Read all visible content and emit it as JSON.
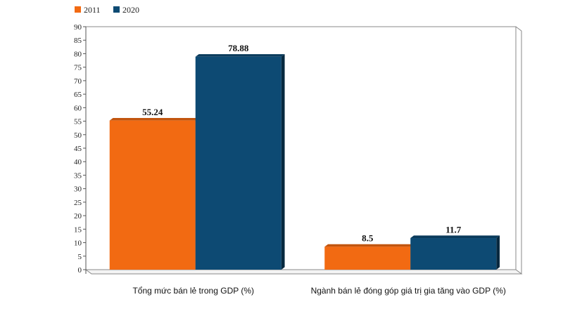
{
  "chart_data": {
    "type": "bar",
    "categories": [
      "Tổng mức bán lẻ trong GDP (%)",
      "Ngành bán lẻ đóng góp giá trị gia tăng vào GDP (%)"
    ],
    "series": [
      {
        "name": "2011",
        "values": [
          55.24,
          8.5
        ],
        "labels": [
          "55.24",
          "8.5"
        ],
        "color": "#f26a12"
      },
      {
        "name": "2020",
        "values": [
          78.88,
          11.7
        ],
        "labels": [
          "78.88",
          "11.7"
        ],
        "color": "#0d4a73"
      }
    ],
    "title": "",
    "xlabel": "",
    "ylabel": "",
    "ylim": [
      0,
      90
    ],
    "yticks": [
      0,
      5,
      10,
      15,
      20,
      25,
      30,
      35,
      40,
      45,
      50,
      55,
      60,
      65,
      70,
      75,
      80,
      85,
      90
    ],
    "grid": false,
    "legend_position": "top-left",
    "style": "3d"
  }
}
